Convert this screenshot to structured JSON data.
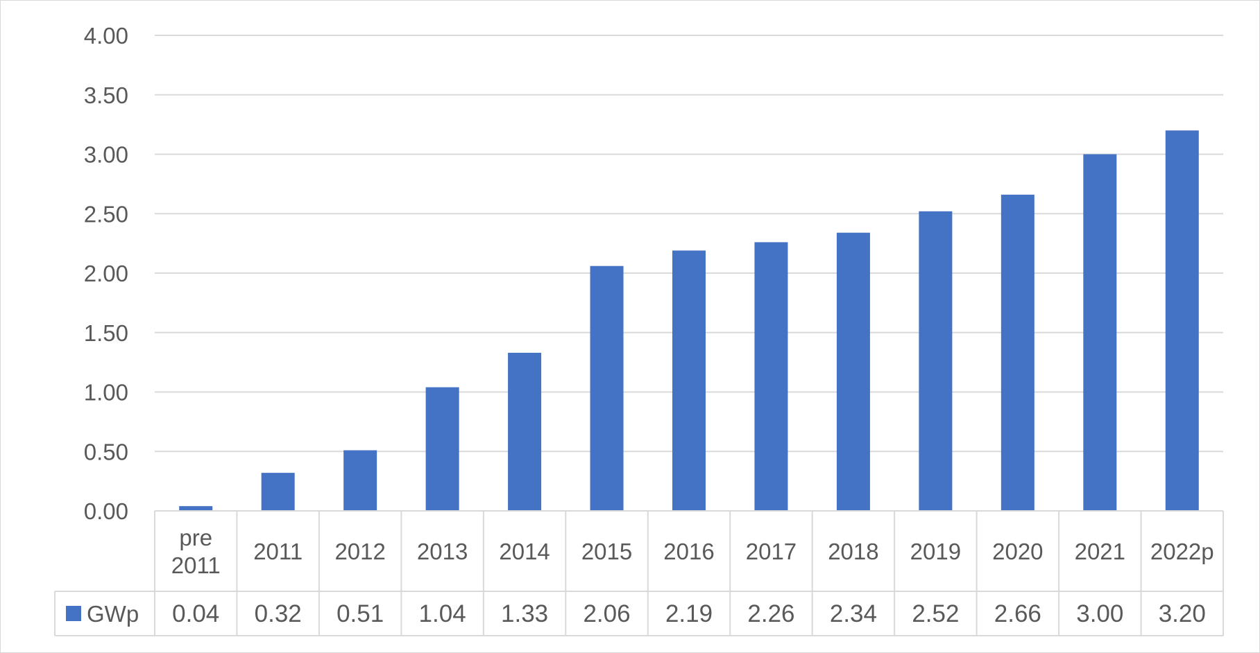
{
  "chart_data": {
    "type": "bar",
    "categories": [
      "pre 2011",
      "2011",
      "2012",
      "2013",
      "2014",
      "2015",
      "2016",
      "2017",
      "2018",
      "2019",
      "2020",
      "2021",
      "2022p"
    ],
    "series": [
      {
        "name": "GWp",
        "values": [
          0.04,
          0.32,
          0.51,
          1.04,
          1.33,
          2.06,
          2.19,
          2.26,
          2.34,
          2.52,
          2.66,
          3.0,
          3.2
        ],
        "value_labels": [
          "0.04",
          "0.32",
          "0.51",
          "1.04",
          "1.33",
          "2.06",
          "2.19",
          "2.26",
          "2.34",
          "2.52",
          "2.66",
          "3.00",
          "3.20"
        ],
        "color": "#4472c4"
      }
    ],
    "yticks": [
      "0.00",
      "0.50",
      "1.00",
      "1.50",
      "2.00",
      "2.50",
      "3.00",
      "3.50",
      "4.00"
    ],
    "ylim": [
      0,
      4
    ],
    "grid": true,
    "legend": "data-table",
    "data_table": true,
    "title": "",
    "xlabel": "",
    "ylabel": ""
  }
}
